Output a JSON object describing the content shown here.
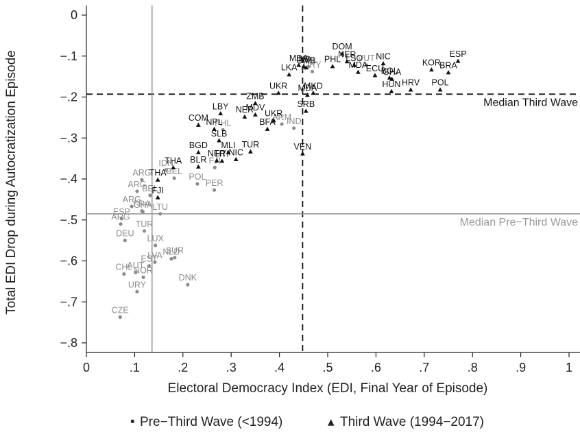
{
  "chart_data": {
    "type": "scatter",
    "title": "",
    "xlabel": "Electoral Democracy Index (EDI, Final Year of Episode)",
    "ylabel": "Total EDI Drop during Autocratization Episode",
    "xlim": [
      0,
      1
    ],
    "ylim": [
      -0.8,
      0
    ],
    "x_ticks": [
      "0",
      ".1",
      ".2",
      ".3",
      ".4",
      ".5",
      ".6",
      ".7",
      ".8",
      ".9",
      "1"
    ],
    "y_ticks": [
      "0",
      "−.1",
      "−.2",
      "−.3",
      "−.4",
      "−.5",
      "−.6",
      "−.7",
      "−.8"
    ],
    "grid": false,
    "legend_position": "bottom",
    "colors": {
      "pre": "#8c8c8c",
      "third": "#111111",
      "pre_ref": "#9a9a9a",
      "third_ref": "#111111"
    },
    "reference_lines": [
      {
        "orientation": "horizontal",
        "value": -0.193,
        "label": "Median Third Wave",
        "style": "dashed",
        "group": "third"
      },
      {
        "orientation": "vertical",
        "value": 0.448,
        "label": "",
        "style": "dashed",
        "group": "third"
      },
      {
        "orientation": "horizontal",
        "value": -0.485,
        "label": "Median Pre−Third Wave",
        "style": "solid",
        "group": "pre"
      },
      {
        "orientation": "vertical",
        "value": 0.136,
        "label": "",
        "style": "solid",
        "group": "pre"
      }
    ],
    "series": [
      {
        "name": "Pre−Third Wave (<1994)",
        "marker": "circle",
        "points": [
          {
            "label": "CZE",
            "x": 0.07,
            "y": -0.737
          },
          {
            "label": "URY",
            "x": 0.105,
            "y": -0.675
          },
          {
            "label": "DNK",
            "x": 0.21,
            "y": -0.658
          },
          {
            "label": "NOR",
            "x": 0.118,
            "y": -0.64
          },
          {
            "label": "AUT",
            "x": 0.102,
            "y": -0.628
          },
          {
            "label": "CHL",
            "x": 0.078,
            "y": -0.632
          },
          {
            "label": "EST",
            "x": 0.13,
            "y": -0.612
          },
          {
            "label": "LVA",
            "x": 0.142,
            "y": -0.603
          },
          {
            "label": "NLD",
            "x": 0.176,
            "y": -0.595
          },
          {
            "label": "SUR",
            "x": 0.183,
            "y": -0.592
          },
          {
            "label": "LUX",
            "x": 0.143,
            "y": -0.562
          },
          {
            "label": "DEU",
            "x": 0.08,
            "y": -0.55
          },
          {
            "label": "TUR",
            "x": 0.12,
            "y": -0.527
          },
          {
            "label": "ESP",
            "x": 0.073,
            "y": -0.497
          },
          {
            "label": "ARG",
            "x": 0.071,
            "y": -0.51
          },
          {
            "label": "LTU",
            "x": 0.153,
            "y": -0.485
          },
          {
            "label": "FRA",
            "x": 0.115,
            "y": -0.478
          },
          {
            "label": "GHA",
            "x": 0.117,
            "y": -0.48
          },
          {
            "label": "ARG",
            "x": 0.094,
            "y": -0.467
          },
          {
            "label": "BEL",
            "x": 0.132,
            "y": -0.44
          },
          {
            "label": "ARG",
            "x": 0.105,
            "y": -0.43
          },
          {
            "label": "ARG",
            "x": 0.115,
            "y": -0.402
          },
          {
            "label": "BEL",
            "x": 0.182,
            "y": -0.398
          },
          {
            "label": "IDN",
            "x": 0.165,
            "y": -0.378
          },
          {
            "label": "POL",
            "x": 0.23,
            "y": -0.412
          },
          {
            "label": "PER",
            "x": 0.265,
            "y": -0.427
          },
          {
            "label": "FJI",
            "x": 0.266,
            "y": -0.372
          },
          {
            "label": "PHL",
            "x": 0.283,
            "y": -0.28
          },
          {
            "label": "ARM",
            "x": 0.405,
            "y": -0.266
          },
          {
            "label": "IND",
            "x": 0.43,
            "y": -0.276
          },
          {
            "label": "CHL",
            "x": 0.46,
            "y": -0.126
          },
          {
            "label": "URY",
            "x": 0.468,
            "y": -0.138
          },
          {
            "label": "VUT",
            "x": 0.58,
            "y": -0.122
          }
        ]
      },
      {
        "name": "Third Wave (1994−2017)",
        "marker": "triangle",
        "points": [
          {
            "label": "ESP",
            "x": 0.77,
            "y": -0.112
          },
          {
            "label": "BRA",
            "x": 0.75,
            "y": -0.14
          },
          {
            "label": "KOR",
            "x": 0.715,
            "y": -0.133
          },
          {
            "label": "POL",
            "x": 0.733,
            "y": -0.182
          },
          {
            "label": "HRV",
            "x": 0.672,
            "y": -0.182
          },
          {
            "label": "HUN",
            "x": 0.632,
            "y": -0.186
          },
          {
            "label": "NIC",
            "x": 0.615,
            "y": -0.118
          },
          {
            "label": "GHA",
            "x": 0.633,
            "y": -0.156
          },
          {
            "label": "BOL",
            "x": 0.628,
            "y": -0.153
          },
          {
            "label": "ECU",
            "x": 0.598,
            "y": -0.147
          },
          {
            "label": "MDA",
            "x": 0.563,
            "y": -0.139
          },
          {
            "label": "LSO",
            "x": 0.555,
            "y": -0.122
          },
          {
            "label": "NER",
            "x": 0.54,
            "y": -0.113
          },
          {
            "label": "DOM",
            "x": 0.53,
            "y": -0.094
          },
          {
            "label": "PHL",
            "x": 0.51,
            "y": -0.125
          },
          {
            "label": "IND",
            "x": 0.45,
            "y": -0.125
          },
          {
            "label": "MDA",
            "x": 0.44,
            "y": -0.122
          },
          {
            "label": "LKA",
            "x": 0.42,
            "y": -0.145
          },
          {
            "label": "GMB",
            "x": 0.455,
            "y": -0.128
          },
          {
            "label": "MDA",
            "x": 0.458,
            "y": -0.195
          },
          {
            "label": "MKD",
            "x": 0.47,
            "y": -0.19
          },
          {
            "label": "UKR",
            "x": 0.398,
            "y": -0.19
          },
          {
            "label": "SRB",
            "x": 0.455,
            "y": -0.234
          },
          {
            "label": "VEN",
            "x": 0.448,
            "y": -0.338
          },
          {
            "label": "ZMB",
            "x": 0.35,
            "y": -0.215
          },
          {
            "label": "NER",
            "x": 0.328,
            "y": -0.248
          },
          {
            "label": "MDV",
            "x": 0.35,
            "y": -0.243
          },
          {
            "label": "UKR",
            "x": 0.388,
            "y": -0.257
          },
          {
            "label": "BFA",
            "x": 0.375,
            "y": -0.278
          },
          {
            "label": "LBY",
            "x": 0.278,
            "y": -0.24
          },
          {
            "label": "COM",
            "x": 0.232,
            "y": -0.268
          },
          {
            "label": "NPL",
            "x": 0.265,
            "y": -0.278
          },
          {
            "label": "SLB",
            "x": 0.275,
            "y": -0.306
          },
          {
            "label": "TUR",
            "x": 0.34,
            "y": -0.333
          },
          {
            "label": "MLI",
            "x": 0.294,
            "y": -0.335
          },
          {
            "label": "NIC",
            "x": 0.31,
            "y": -0.352
          },
          {
            "label": "NER",
            "x": 0.27,
            "y": -0.355
          },
          {
            "label": "HTI",
            "x": 0.281,
            "y": -0.356
          },
          {
            "label": "BGD",
            "x": 0.232,
            "y": -0.335
          },
          {
            "label": "BLR",
            "x": 0.232,
            "y": -0.37
          },
          {
            "label": "THA",
            "x": 0.18,
            "y": -0.372
          },
          {
            "label": "THA",
            "x": 0.148,
            "y": -0.402
          },
          {
            "label": "FJI",
            "x": 0.148,
            "y": -0.445
          }
        ]
      }
    ]
  },
  "legend": {
    "items": [
      {
        "symbol": "•",
        "label": "Pre−Third Wave (<1994)"
      },
      {
        "symbol": "▴",
        "label": "Third Wave (1994−2017)"
      }
    ]
  }
}
